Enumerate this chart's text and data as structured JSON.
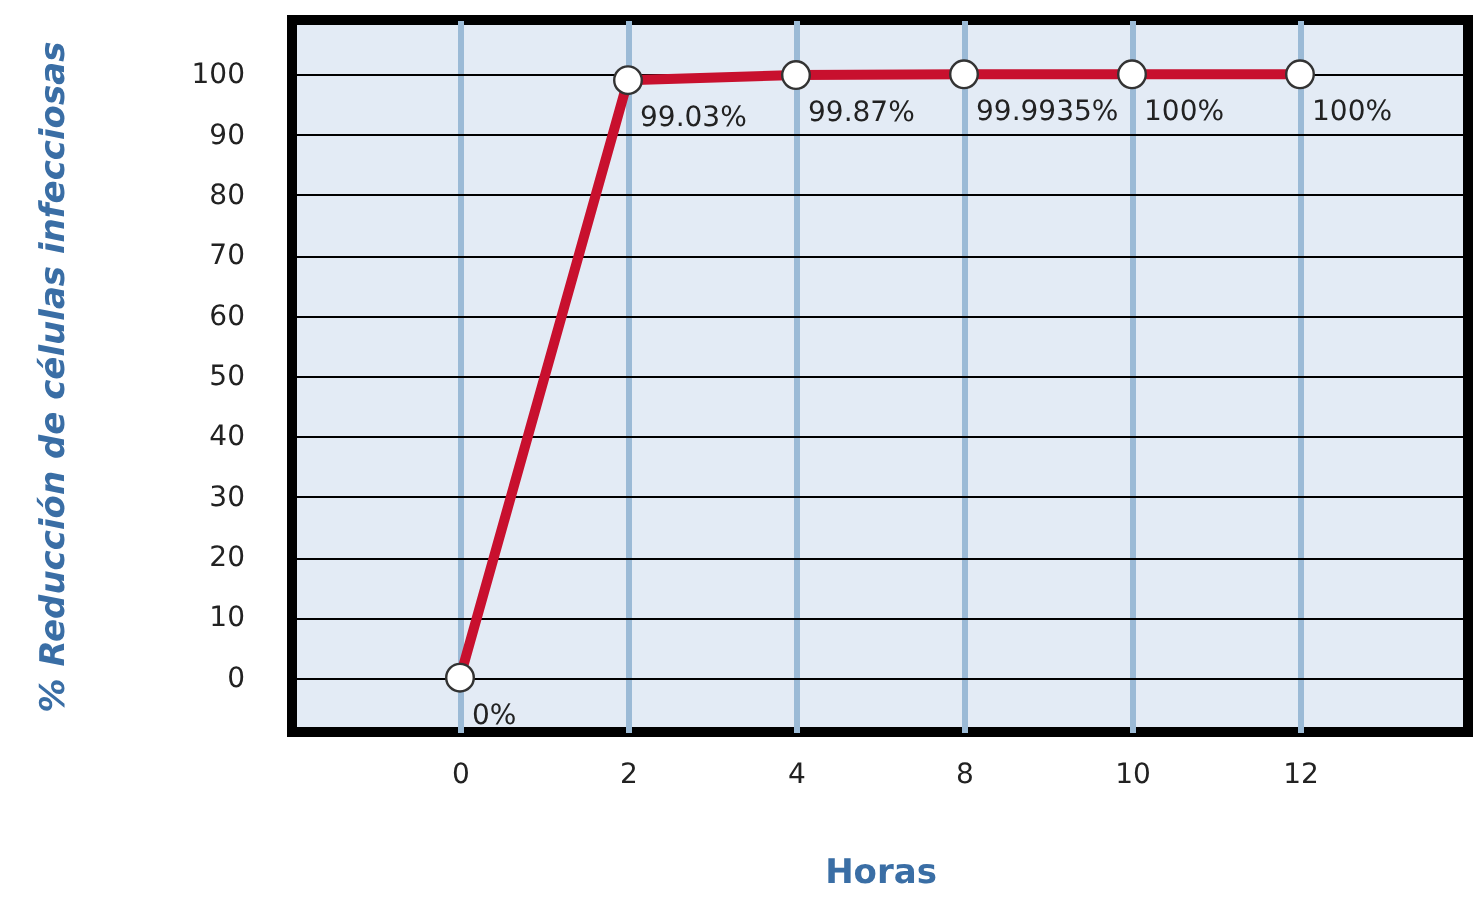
{
  "chart_data": {
    "type": "line",
    "xlabel": "Horas",
    "ylabel": "% Reducción de células infecciosas",
    "categories": [
      "0",
      "2",
      "4",
      "8",
      "10",
      "12"
    ],
    "series": [
      {
        "color": "#c8102e",
        "values": [
          0,
          99.03,
          99.87,
          99.9935,
          100,
          100
        ],
        "value_labels": [
          "0%",
          "99.03%",
          "99.87%",
          "99.9935%",
          "100%",
          "100%"
        ]
      }
    ],
    "ylim": [
      -9,
      109
    ],
    "yticks": [
      0,
      10,
      20,
      30,
      40,
      50,
      60,
      70,
      80,
      90,
      100
    ],
    "grid": true,
    "marker": "circle",
    "line_style": "solid"
  }
}
